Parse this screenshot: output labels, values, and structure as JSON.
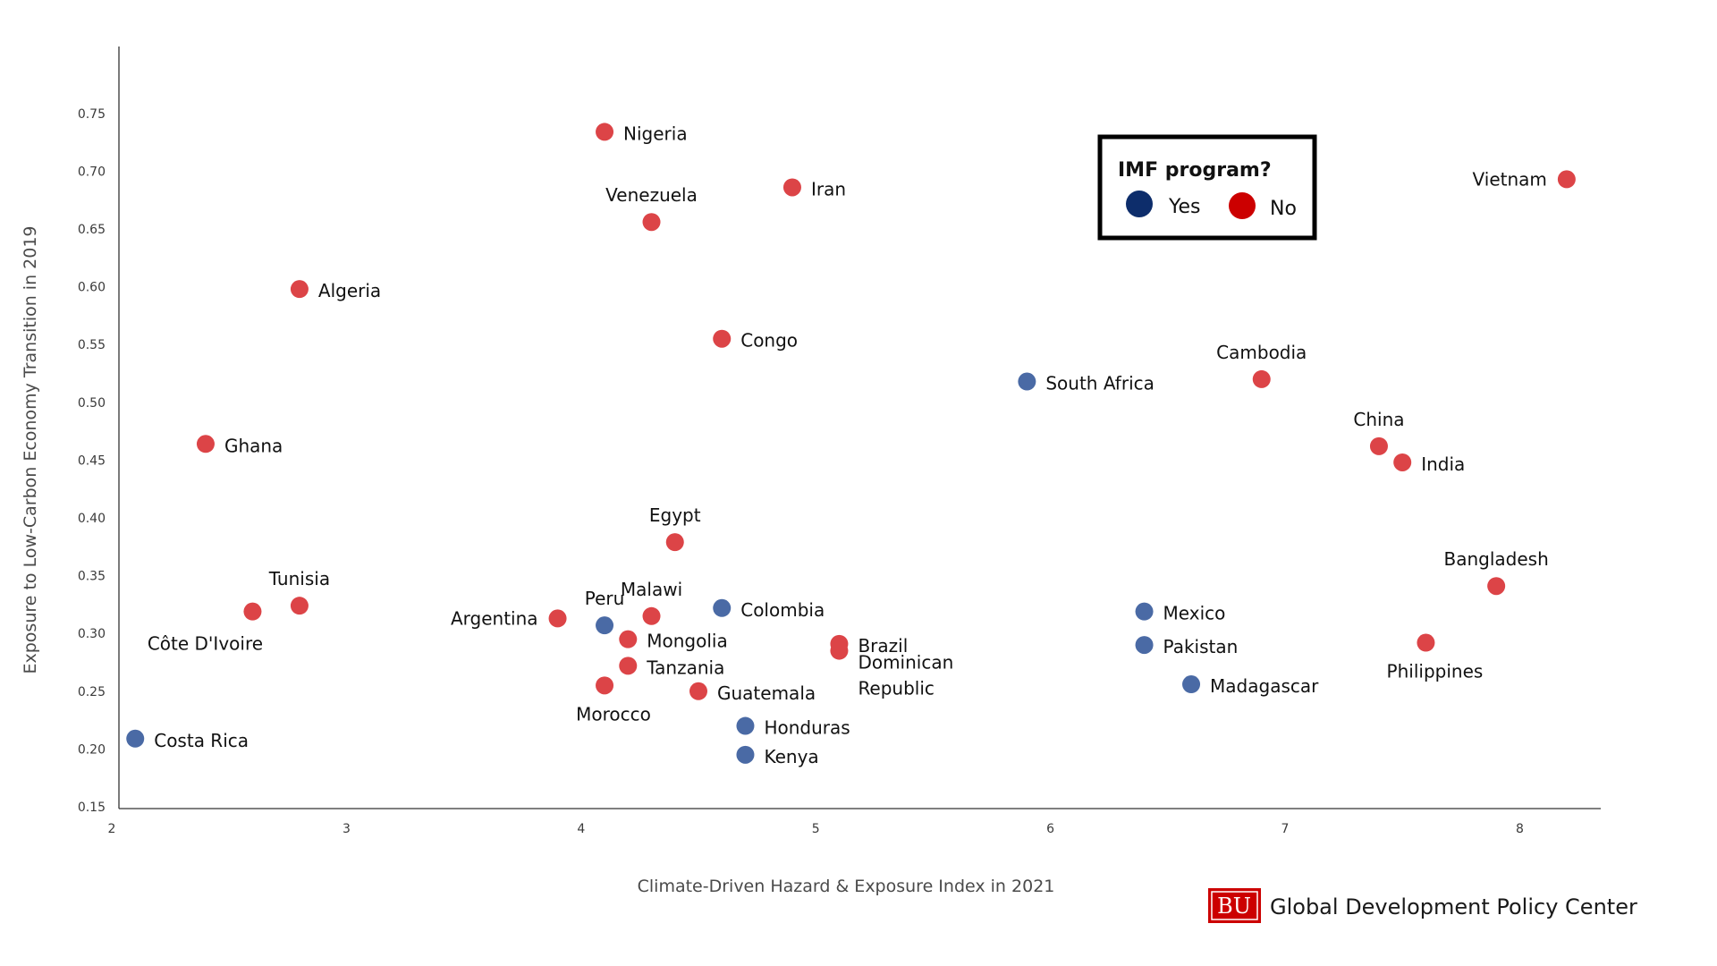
{
  "chart_data": {
    "type": "scatter",
    "xlabel": "Climate-Driven Hazard & Exposure Index in 2021",
    "ylabel": "Exposure to Low-Carbon Economy Transition in 2019",
    "xlim": [
      2,
      8.25
    ],
    "ylim": [
      0.15,
      0.78
    ],
    "xticks": [
      2,
      3,
      4,
      5,
      6,
      7,
      8
    ],
    "yticks": [
      0.15,
      0.2,
      0.25,
      0.3,
      0.35,
      0.4,
      0.45,
      0.5,
      0.55,
      0.6,
      0.65,
      0.7,
      0.75
    ],
    "ytick_labels": [
      "0.15",
      "0.20",
      "0.25",
      "0.30",
      "0.35",
      "0.40",
      "0.45",
      "0.50",
      "0.55",
      "0.60",
      "0.65",
      "0.70",
      "0.75"
    ],
    "grid": false,
    "legend": {
      "title": "IMF program?",
      "placement": "top-right",
      "entries": [
        {
          "label": "Yes",
          "color": "#0d2d6b"
        },
        {
          "label": "No",
          "color": "#cc0000"
        }
      ]
    },
    "series": [
      {
        "name": "Yes",
        "color": "#4a6aa5",
        "points": [
          {
            "label": "Costa Rica",
            "x": 2.1,
            "y": 0.209,
            "label_pos": "right"
          },
          {
            "label": "Peru",
            "x": 4.1,
            "y": 0.307,
            "label_pos": "above"
          },
          {
            "label": "Colombia",
            "x": 4.6,
            "y": 0.322,
            "label_pos": "right"
          },
          {
            "label": "Honduras",
            "x": 4.7,
            "y": 0.22,
            "label_pos": "right"
          },
          {
            "label": "Kenya",
            "x": 4.7,
            "y": 0.195,
            "label_pos": "right"
          },
          {
            "label": "South Africa",
            "x": 5.9,
            "y": 0.518,
            "label_pos": "right"
          },
          {
            "label": "Mexico",
            "x": 6.4,
            "y": 0.319,
            "label_pos": "right"
          },
          {
            "label": "Pakistan",
            "x": 6.4,
            "y": 0.29,
            "label_pos": "right"
          },
          {
            "label": "Madagascar",
            "x": 6.6,
            "y": 0.256,
            "label_pos": "right"
          }
        ]
      },
      {
        "name": "No",
        "color": "#dc4447",
        "points": [
          {
            "label": "Ghana",
            "x": 2.4,
            "y": 0.464,
            "label_pos": "right"
          },
          {
            "label": "Côte D'Ivoire",
            "x": 2.6,
            "y": 0.319,
            "label_pos": "below-left"
          },
          {
            "label": "Algeria",
            "x": 2.8,
            "y": 0.598,
            "label_pos": "right"
          },
          {
            "label": "Tunisia",
            "x": 2.8,
            "y": 0.324,
            "label_pos": "above"
          },
          {
            "label": "Argentina",
            "x": 3.9,
            "y": 0.313,
            "label_pos": "left"
          },
          {
            "label": "Nigeria",
            "x": 4.1,
            "y": 0.734,
            "label_pos": "right"
          },
          {
            "label": "Morocco",
            "x": 4.1,
            "y": 0.255,
            "label_pos": "below"
          },
          {
            "label": "Mongolia",
            "x": 4.2,
            "y": 0.295,
            "label_pos": "right"
          },
          {
            "label": "Tanzania",
            "x": 4.2,
            "y": 0.272,
            "label_pos": "right"
          },
          {
            "label": "Venezuela",
            "x": 4.3,
            "y": 0.656,
            "label_pos": "above"
          },
          {
            "label": "Malawi",
            "x": 4.3,
            "y": 0.315,
            "label_pos": "above"
          },
          {
            "label": "Egypt",
            "x": 4.4,
            "y": 0.379,
            "label_pos": "above"
          },
          {
            "label": "Guatemala",
            "x": 4.5,
            "y": 0.25,
            "label_pos": "right"
          },
          {
            "label": "Congo",
            "x": 4.6,
            "y": 0.555,
            "label_pos": "right"
          },
          {
            "label": "Iran",
            "x": 4.9,
            "y": 0.686,
            "label_pos": "right"
          },
          {
            "label": "Brazil",
            "x": 5.1,
            "y": 0.291,
            "label_pos": "right"
          },
          {
            "label": "Dominican Republic",
            "x": 5.1,
            "y": 0.285,
            "label_pos": "right-two-line"
          },
          {
            "label": "Cambodia",
            "x": 6.9,
            "y": 0.52,
            "label_pos": "above"
          },
          {
            "label": "China",
            "x": 7.4,
            "y": 0.462,
            "label_pos": "above"
          },
          {
            "label": "India",
            "x": 7.5,
            "y": 0.448,
            "label_pos": "right"
          },
          {
            "label": "Philippines",
            "x": 7.6,
            "y": 0.292,
            "label_pos": "below"
          },
          {
            "label": "Bangladesh",
            "x": 7.9,
            "y": 0.341,
            "label_pos": "above"
          },
          {
            "label": "Vietnam",
            "x": 8.2,
            "y": 0.693,
            "label_pos": "left"
          }
        ]
      }
    ]
  },
  "footer": {
    "logo_text": "BU",
    "org_name": "Global Development Policy Center",
    "logo_color": "#cc0000"
  }
}
